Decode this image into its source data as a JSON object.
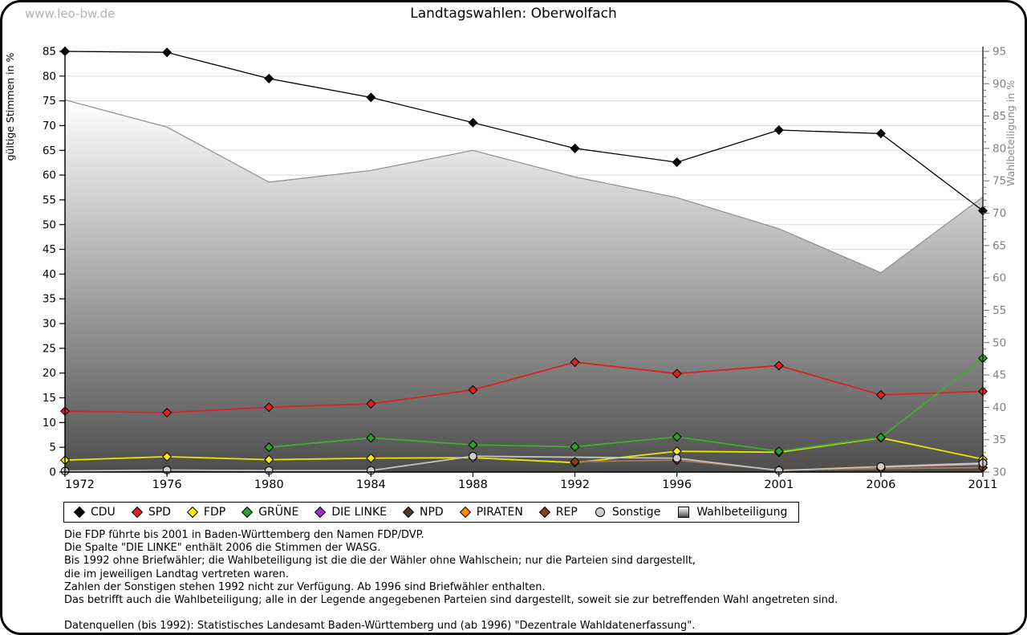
{
  "page": {
    "watermark": "www.leo-bw.de",
    "title": "Landtagswahlen: Oberwolfach"
  },
  "chart_data": {
    "type": "line",
    "title": "Landtagswahlen: Oberwolfach",
    "categories": [
      "1972",
      "1976",
      "1980",
      "1984",
      "1988",
      "1992",
      "1996",
      "2001",
      "2006",
      "2011"
    ],
    "left_axis": {
      "label": "gültige Stimmen in %",
      "min": 0,
      "max": 85,
      "tick_step": 5
    },
    "right_axis": {
      "label": "Wahlbeteiligung in %",
      "min": 30,
      "max": 95,
      "tick_step": 5,
      "minor_step": 1
    },
    "grid": true,
    "legend_position": "bottom",
    "colors": {
      "grid": "#d9d9d9",
      "axis": "#000000",
      "right_axis_text": "#808080",
      "area_stroke": "#8e8e8e",
      "area_fill_top": "#ffffff",
      "area_fill_bottom": "#4d4d4d"
    },
    "series": [
      {
        "name": "CDU",
        "axis": "left",
        "marker": "diamond",
        "color": "#000000",
        "line": "#000000",
        "values": [
          85.0,
          84.8,
          79.5,
          75.7,
          70.6,
          65.4,
          62.6,
          69.1,
          68.4,
          52.8
        ]
      },
      {
        "name": "SPD",
        "axis": "left",
        "marker": "diamond",
        "color": "#dd2222",
        "line": "#dd2222",
        "values": [
          12.3,
          12.0,
          13.1,
          13.8,
          16.6,
          22.2,
          19.9,
          21.5,
          15.6,
          16.3
        ]
      },
      {
        "name": "FDP",
        "axis": "left",
        "marker": "diamond",
        "color": "#ffee00",
        "line": "#efe300",
        "values": [
          2.4,
          3.1,
          2.5,
          2.8,
          2.9,
          1.9,
          4.2,
          4.0,
          6.9,
          2.6
        ]
      },
      {
        "name": "GRÜNE",
        "axis": "left",
        "marker": "diamond",
        "color": "#2ba12b",
        "line": "#3dae2b",
        "values": [
          null,
          null,
          5.0,
          6.9,
          5.5,
          5.1,
          7.1,
          4.2,
          7.0,
          23.0
        ]
      },
      {
        "name": "DIE LINKE",
        "axis": "left",
        "marker": "diamond",
        "color": "#9932cc",
        "line": "#c3a8d7",
        "values": [
          null,
          null,
          null,
          null,
          null,
          null,
          null,
          null,
          1.0,
          1.6
        ]
      },
      {
        "name": "NPD",
        "axis": "left",
        "marker": "diamond",
        "color": "#4c3a26",
        "line": "#4c3a26",
        "values": [
          null,
          null,
          null,
          null,
          null,
          null,
          null,
          null,
          null,
          0.9
        ]
      },
      {
        "name": "PIRATEN",
        "axis": "left",
        "marker": "diamond",
        "color": "#ff8c00",
        "line": "#ff8c00",
        "values": [
          null,
          null,
          null,
          null,
          null,
          null,
          null,
          null,
          null,
          2.0
        ]
      },
      {
        "name": "REP",
        "axis": "left",
        "marker": "diamond",
        "color": "#8d3c1e",
        "line": "#a87a50",
        "values": [
          null,
          null,
          null,
          null,
          null,
          2.1,
          2.4,
          0.4,
          0.7,
          0.9
        ]
      },
      {
        "name": "Sonstige",
        "axis": "left",
        "marker": "circle",
        "color": "#cccccc",
        "line": "#c4c4c4",
        "values": [
          0.2,
          0.4,
          0.3,
          0.3,
          3.2,
          null,
          2.8,
          0.3,
          1.1,
          1.8
        ]
      },
      {
        "name": "Wahlbeteiligung",
        "axis": "right",
        "type": "area",
        "marker": "square",
        "color": "#bfbfbf",
        "values": [
          87.5,
          83.3,
          74.8,
          76.6,
          79.7,
          75.6,
          72.4,
          67.6,
          60.8,
          72.5
        ]
      }
    ]
  },
  "footnotes": {
    "lines": [
      "Die FDP führte bis 2001 in Baden-Württemberg den Namen FDP/DVP.",
      "Die Spalte \"DIE LINKE\" enthält 2006 die Stimmen der WASG.",
      "Bis 1992 ohne Briefwähler; die Wahlbeteiligung ist die die der Wähler ohne Wahlschein; nur die Parteien sind dargestellt,",
      "die im jeweiligen Landtag vertreten waren.",
      "Zahlen der Sonstigen stehen 1992 nicht zur Verfügung. Ab 1996 sind Briefwähler enthalten.",
      "Das betrifft auch die Wahlbeteiligung; alle in der Legende angegebenen Parteien sind dargestellt, soweit sie zur betreffenden Wahl angetreten sind.",
      "",
      "Datenquellen (bis 1992): Statistisches Landesamt Baden-Württemberg und (ab 1996) \"Dezentrale Wahldatenerfassung\"."
    ]
  }
}
